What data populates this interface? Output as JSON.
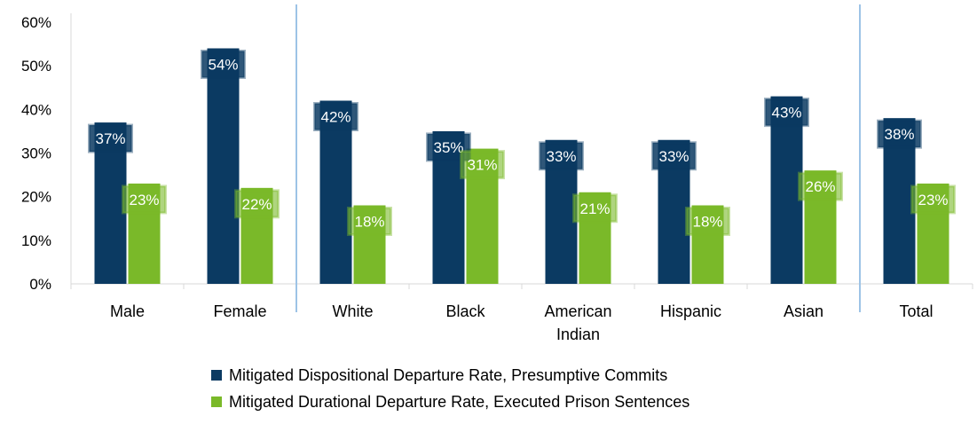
{
  "chart_data": {
    "type": "bar",
    "categories": [
      [
        "Male"
      ],
      [
        "Female"
      ],
      [
        "White"
      ],
      [
        "Black"
      ],
      [
        "American",
        "Indian"
      ],
      [
        "Hispanic"
      ],
      [
        "Asian"
      ],
      [
        "Total"
      ]
    ],
    "series": [
      {
        "name": "Mitigated Dispositional Departure Rate, Presumptive Commits",
        "color": "#0b3a62",
        "values": [
          37,
          54,
          42,
          35,
          33,
          33,
          43,
          38
        ],
        "labels": [
          "37%",
          "54%",
          "42%",
          "35%",
          "33%",
          "33%",
          "43%",
          "38%"
        ]
      },
      {
        "name": "Mitigated Durational Departure Rate, Executed Prison Sentences",
        "color": "#7ab929",
        "values": [
          23,
          22,
          18,
          31,
          21,
          18,
          26,
          23
        ],
        "labels": [
          "23%",
          "22%",
          "18%",
          "31%",
          "21%",
          "18%",
          "26%",
          "23%"
        ]
      }
    ],
    "yticks": [
      "0%",
      "10%",
      "20%",
      "30%",
      "40%",
      "50%",
      "60%"
    ],
    "ylim": [
      0,
      60
    ],
    "grid": false,
    "group_dividers_after": [
      2,
      7
    ],
    "legend_position": "bottom"
  }
}
